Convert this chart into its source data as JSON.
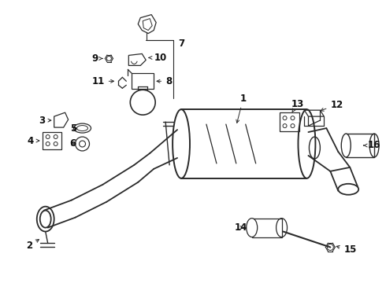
{
  "bg_color": "#ffffff",
  "line_color": "#2a2a2a",
  "text_color": "#111111",
  "fig_w": 4.9,
  "fig_h": 3.6,
  "dpi": 100
}
